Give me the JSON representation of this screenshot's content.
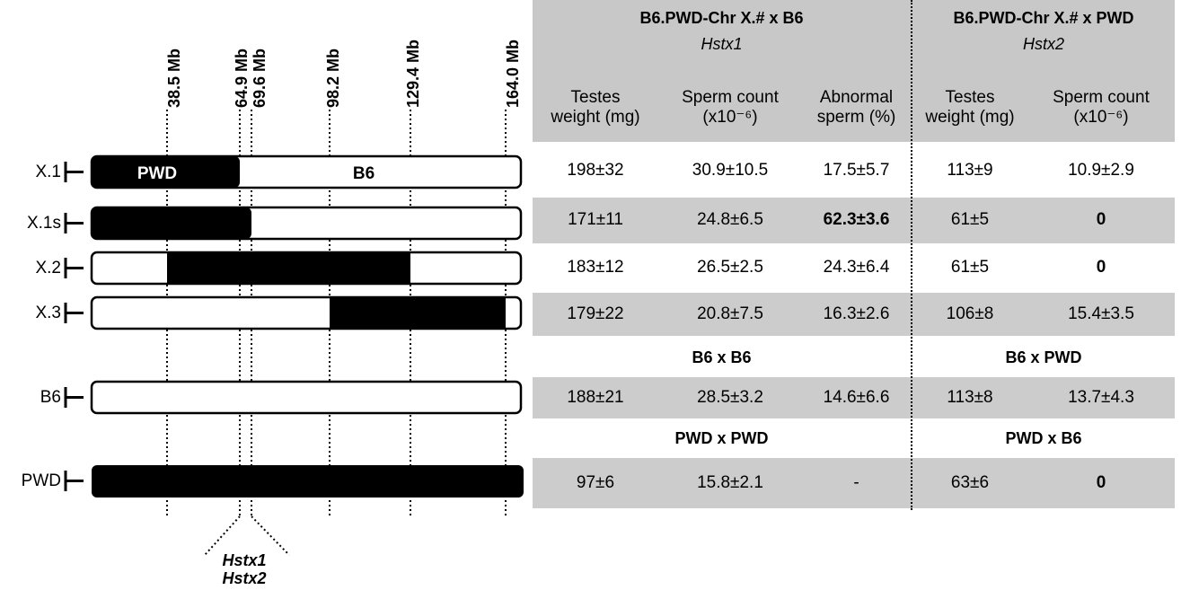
{
  "loci": {
    "markers": [
      "38.5 Mb",
      "64.9 Mb",
      "69.6 Mb",
      "98.2 Mb",
      "129.4 Mb",
      "164.0 Mb"
    ],
    "genes": [
      "Hstx1",
      "Hstx2"
    ]
  },
  "strains": [
    {
      "label": "X.1",
      "bar_label_left": "PWD",
      "bar_label_right": "B6",
      "pwd_from_mb": 0,
      "pwd_to_mb": 64.9
    },
    {
      "label": "X.1s",
      "pwd_from_mb": 0,
      "pwd_to_mb": 69.6
    },
    {
      "label": "X.2",
      "pwd_from_mb": 38.5,
      "pwd_to_mb": 129.4
    },
    {
      "label": "X.3",
      "pwd_from_mb": 98.2,
      "pwd_to_mb": 164.0
    },
    {
      "label": "B6",
      "pwd_from_mb": null,
      "pwd_to_mb": null
    },
    {
      "label": "PWD",
      "pwd_from_mb": 0,
      "pwd_to_mb": 164.0
    }
  ],
  "colors": {
    "pwd": "#000000",
    "b6": "#ffffff",
    "header_fill": "#c8c8c8",
    "row_fill": "#cccccc"
  },
  "table": {
    "group1": {
      "title": "B6.PWD-Chr X.# x B6",
      "gene": "Hstx1"
    },
    "group2": {
      "title": "B6.PWD-Chr X.# x PWD",
      "gene": "Hstx2"
    },
    "columns": [
      {
        "line1": "Testes",
        "line2": "weight (mg)"
      },
      {
        "line1": "Sperm count",
        "line2": "(x10⁻⁶)"
      },
      {
        "line1": "Abnormal",
        "line2": "sperm (%)"
      },
      {
        "line1": "Testes",
        "line2": "weight (mg)"
      },
      {
        "line1": "Sperm count",
        "line2": "(x10⁻⁶)"
      }
    ],
    "rows": [
      {
        "cells": [
          "198±32",
          "30.9±10.5",
          "17.5±5.7",
          "113±9",
          "10.9±2.9"
        ],
        "bold": [],
        "shaded": false
      },
      {
        "cells": [
          "171±11",
          "24.8±6.5",
          "62.3±3.6",
          "61±5",
          "0"
        ],
        "bold": [
          2,
          4
        ],
        "shaded": true
      },
      {
        "cells": [
          "183±12",
          "26.5±2.5",
          "24.3±6.4",
          "61±5",
          "0"
        ],
        "bold": [
          4
        ],
        "shaded": false
      },
      {
        "cells": [
          "179±22",
          "20.8±7.5",
          "16.3±2.6",
          "106±8",
          "15.4±3.5"
        ],
        "bold": [],
        "shaded": true
      },
      {
        "cells": [
          "188±21",
          "28.5±3.2",
          "14.6±6.6",
          "113±8",
          "13.7±4.3"
        ],
        "bold": [],
        "shaded": true
      },
      {
        "cells": [
          "97±6",
          "15.8±2.1",
          "-",
          "63±6",
          "0"
        ],
        "bold": [
          4
        ],
        "shaded": true
      }
    ],
    "control_headers": [
      {
        "left": "B6 x B6",
        "right": "B6 x PWD"
      },
      {
        "left": "PWD x PWD",
        "right": "PWD x B6"
      }
    ]
  }
}
